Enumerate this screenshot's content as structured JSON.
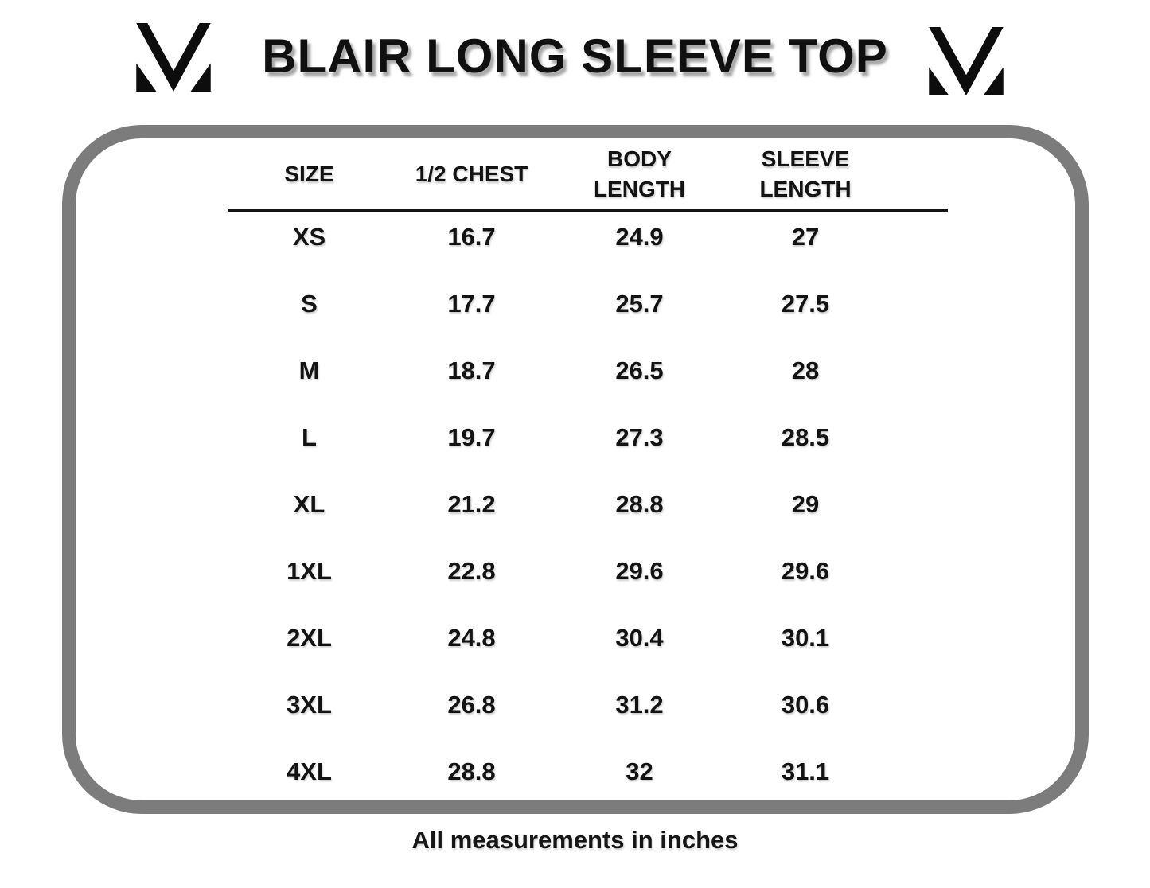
{
  "title": "BLAIR LONG SLEEVE TOP",
  "footer_note": "All measurements in inches",
  "colors": {
    "frame_border": "#7c7c7c",
    "text": "#131313",
    "title_shadow": "#a8a8a8",
    "background": "#ffffff"
  },
  "logos": {
    "left": "mv-monogram-logo",
    "right": "mv-monogram-logo"
  },
  "chart_data": {
    "type": "table",
    "title": "BLAIR LONG SLEEVE TOP",
    "units": "inches",
    "columns": [
      "SIZE",
      "1/2 CHEST",
      "BODY LENGTH",
      "SLEEVE LENGTH"
    ],
    "rows": [
      [
        "XS",
        "16.7",
        "24.9",
        "27"
      ],
      [
        "S",
        "17.7",
        "25.7",
        "27.5"
      ],
      [
        "M",
        "18.7",
        "26.5",
        "28"
      ],
      [
        "L",
        "19.7",
        "27.3",
        "28.5"
      ],
      [
        "XL",
        "21.2",
        "28.8",
        "29"
      ],
      [
        "1XL",
        "22.8",
        "29.6",
        "29.6"
      ],
      [
        "2XL",
        "24.8",
        "30.4",
        "30.1"
      ],
      [
        "3XL",
        "26.8",
        "31.2",
        "30.6"
      ],
      [
        "4XL",
        "28.8",
        "32",
        "31.1"
      ]
    ]
  }
}
